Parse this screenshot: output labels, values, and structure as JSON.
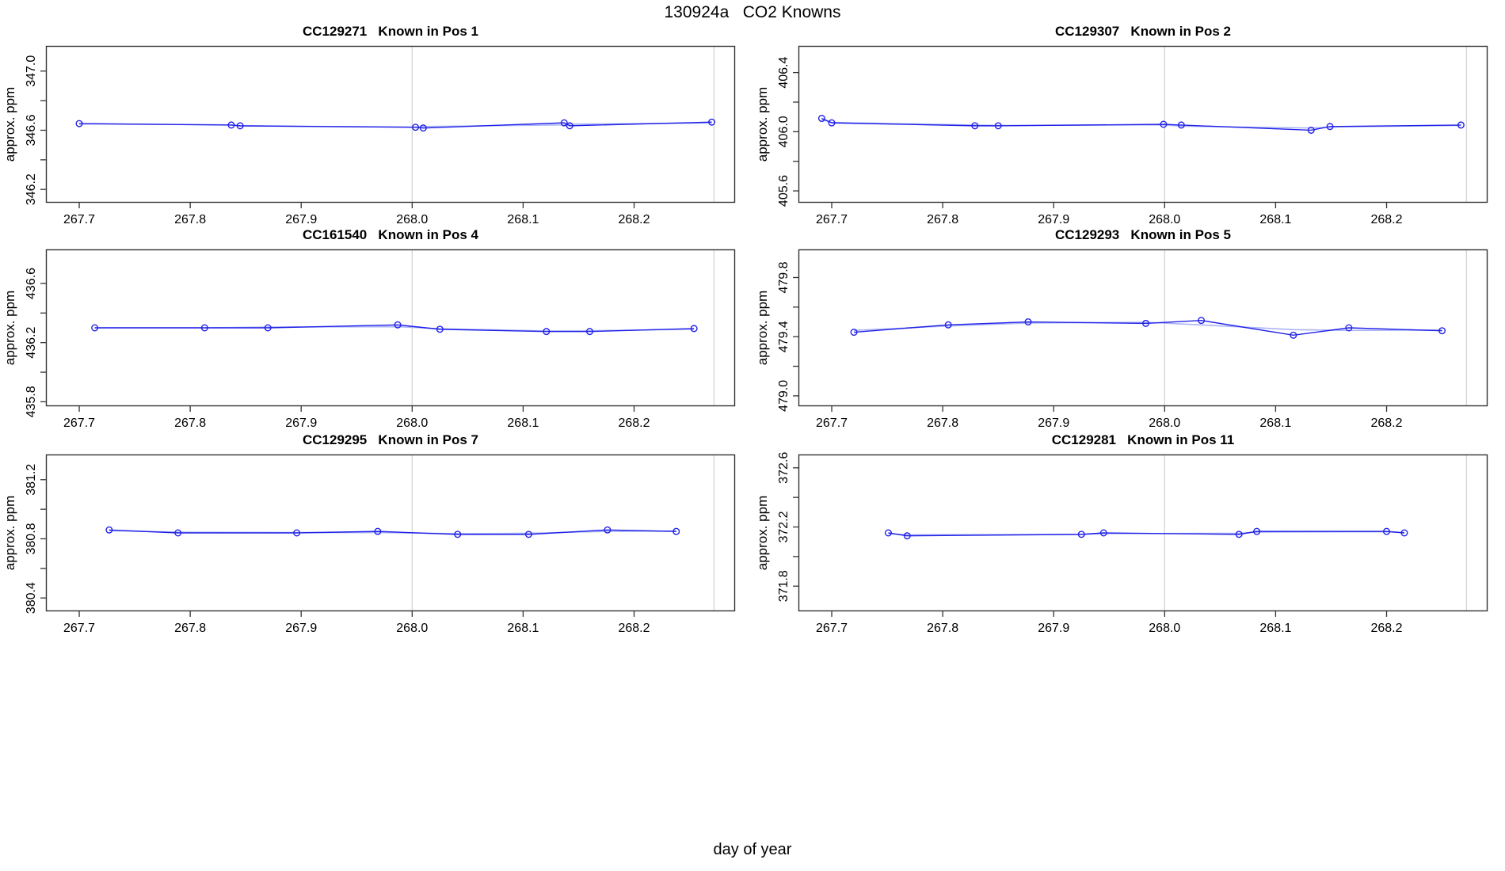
{
  "title": "130924a   CO2 Knowns",
  "xlabel_global": "day of year",
  "colors": {
    "line": "#2121e8",
    "line_smooth": "#aab4f5",
    "grid": "#d4d4d4",
    "axis": "#333333",
    "text": "#000000",
    "background": "#ffffff"
  },
  "chart_data": [
    {
      "type": "line",
      "title": "CC129271   Known in Pos 1",
      "ylabel": "approx. ppm",
      "marker": "open-circle",
      "grid": "vertical-only",
      "xlim": [
        267.67,
        268.291
      ],
      "ylim": [
        346.11,
        347.17
      ],
      "x_ticks": [
        267.7,
        267.8,
        267.9,
        268.0,
        268.1,
        268.2
      ],
      "y_ticks_labeled": [
        346.2,
        346.6,
        347.0
      ],
      "y_ticks_minor": [
        346.4,
        346.8
      ],
      "grid_x": [
        268.0,
        268.272
      ],
      "x": [
        267.7,
        267.837,
        267.845,
        268.003,
        268.01,
        268.137,
        268.142,
        268.27
      ],
      "y": [
        346.645,
        346.635,
        346.63,
        346.62,
        346.615,
        346.65,
        346.63,
        346.655
      ]
    },
    {
      "type": "line",
      "title": "CC129307   Known in Pos 2",
      "ylabel": "approx. ppm",
      "marker": "open-circle",
      "grid": "vertical-only",
      "xlim": [
        267.67,
        268.291
      ],
      "ylim": [
        405.52,
        406.58
      ],
      "x_ticks": [
        267.7,
        267.8,
        267.9,
        268.0,
        268.1,
        268.2
      ],
      "y_ticks_labeled": [
        405.6,
        406.0,
        406.4
      ],
      "y_ticks_minor": [
        405.8,
        406.2
      ],
      "grid_x": [
        268.0,
        268.272
      ],
      "x": [
        267.691,
        267.7,
        267.829,
        267.85,
        267.999,
        268.015,
        268.132,
        268.149,
        268.267
      ],
      "y": [
        406.09,
        406.06,
        406.04,
        406.04,
        406.05,
        406.045,
        406.01,
        406.035,
        406.045
      ]
    },
    {
      "type": "line",
      "title": "CC161540   Known in Pos 4",
      "ylabel": "approx. ppm",
      "marker": "open-circle",
      "grid": "vertical-only",
      "xlim": [
        267.67,
        268.291
      ],
      "ylim": [
        435.77,
        436.83
      ],
      "x_ticks": [
        267.7,
        267.8,
        267.9,
        268.0,
        268.1,
        268.2
      ],
      "y_ticks_labeled": [
        435.8,
        436.2,
        436.6
      ],
      "y_ticks_minor": [
        436.0,
        436.4
      ],
      "grid_x": [
        268.0,
        268.272
      ],
      "x": [
        267.714,
        267.813,
        267.87,
        267.987,
        268.025,
        268.121,
        268.16,
        268.254
      ],
      "y": [
        436.3,
        436.3,
        436.3,
        436.32,
        436.29,
        436.275,
        436.275,
        436.295
      ]
    },
    {
      "type": "line",
      "title": "CC129293   Known in Pos 5",
      "ylabel": "approx. ppm",
      "marker": "open-circle",
      "grid": "vertical-only",
      "xlim": [
        267.67,
        268.291
      ],
      "ylim": [
        478.93,
        479.99
      ],
      "x_ticks": [
        267.7,
        267.8,
        267.9,
        268.0,
        268.1,
        268.2
      ],
      "y_ticks_labeled": [
        479.0,
        479.4,
        479.8
      ],
      "y_ticks_minor": [
        479.2,
        479.6
      ],
      "grid_x": [
        268.0,
        268.272
      ],
      "x": [
        267.72,
        267.805,
        267.877,
        267.983,
        268.033,
        268.116,
        268.166,
        268.25
      ],
      "y": [
        479.43,
        479.48,
        479.5,
        479.49,
        479.51,
        479.41,
        479.46,
        479.44
      ]
    },
    {
      "type": "line",
      "title": "CC129295   Known in Pos 7",
      "ylabel": "approx. ppm",
      "marker": "open-circle",
      "grid": "vertical-only",
      "xlim": [
        267.67,
        268.291
      ],
      "ylim": [
        380.31,
        381.37
      ],
      "x_ticks": [
        267.7,
        267.8,
        267.9,
        268.0,
        268.1,
        268.2
      ],
      "y_ticks_labeled": [
        380.4,
        380.8,
        381.2
      ],
      "y_ticks_minor": [
        380.6,
        381.0
      ],
      "grid_x": [
        268.0,
        268.272
      ],
      "x": [
        267.727,
        267.789,
        267.896,
        267.969,
        268.041,
        268.105,
        268.176,
        268.238
      ],
      "y": [
        380.86,
        380.84,
        380.84,
        380.85,
        380.83,
        380.83,
        380.86,
        380.85
      ]
    },
    {
      "type": "line",
      "title": "CC129281   Known in Pos 11",
      "ylabel": "approx. ppm",
      "marker": "open-circle",
      "grid": "vertical-only",
      "xlim": [
        267.67,
        268.291
      ],
      "ylim": [
        371.63,
        372.69
      ],
      "x_ticks": [
        267.7,
        267.8,
        267.9,
        268.0,
        268.1,
        268.2
      ],
      "y_ticks_labeled": [
        371.8,
        372.2,
        372.6
      ],
      "y_ticks_minor": [
        372.0,
        372.4
      ],
      "grid_x": [
        268.0,
        268.272
      ],
      "x": [
        267.751,
        267.768,
        267.925,
        267.945,
        268.067,
        268.083,
        268.2,
        268.216
      ],
      "y": [
        372.16,
        372.14,
        372.15,
        372.16,
        372.15,
        372.17,
        372.17,
        372.16
      ]
    }
  ]
}
